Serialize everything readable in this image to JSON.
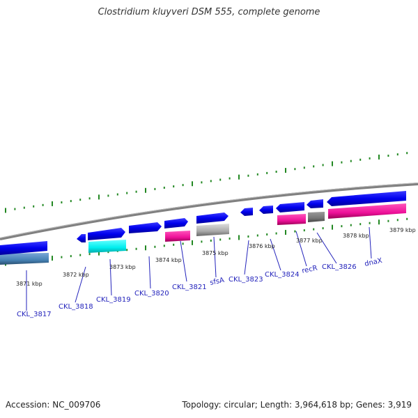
{
  "title": "Clostridium kluyveri DSM 555, complete genome",
  "accession_text": "Accession: NC_009706",
  "summary_text": "Topology: circular; Length: 3,964,618 bp; Genes: 3,919",
  "scale_labels": [
    "3871 kbp",
    "3872 kbp",
    "3873 kbp",
    "3874 kbp",
    "3875 kbp",
    "3876 kbp",
    "3877 kbp",
    "3878 kbp",
    "3879 kbp"
  ],
  "genes": [
    {
      "name": "CKL_3817",
      "color": "#0000ee",
      "strand": "-"
    },
    {
      "name": "CKL_3818",
      "color": "#0000ee",
      "strand": "-"
    },
    {
      "name": "CKL_3819",
      "color": "#0000ee",
      "strand": "+"
    },
    {
      "name": "CKL_3820",
      "color": "#0000ee",
      "strand": "+"
    },
    {
      "name": "CKL_3821",
      "color": "#0000ee",
      "strand": "+"
    },
    {
      "name": "sfsA",
      "color": "#0000ee",
      "strand": "+"
    },
    {
      "name": "CKL_3823",
      "color": "#0000ee",
      "strand": "-"
    },
    {
      "name": "CKL_3824",
      "color": "#0000ee",
      "strand": "-"
    },
    {
      "name": "recR",
      "color": "#0000ee",
      "strand": "-"
    },
    {
      "name": "CKL_3826",
      "color": "#0000ee",
      "strand": "-"
    },
    {
      "name": "dnaX",
      "color": "#0000ee",
      "strand": "-"
    }
  ],
  "colors": {
    "gene": "#0000ee",
    "backbone": "#888888",
    "ticks": "#228822",
    "label": "#2222bb",
    "feature_cyan": "#00eeee",
    "feature_pink": "#ee1199",
    "feature_gray": "#aaaaaa",
    "feature_darkgray": "#777777",
    "feature_steelblue": "#4682b4"
  }
}
